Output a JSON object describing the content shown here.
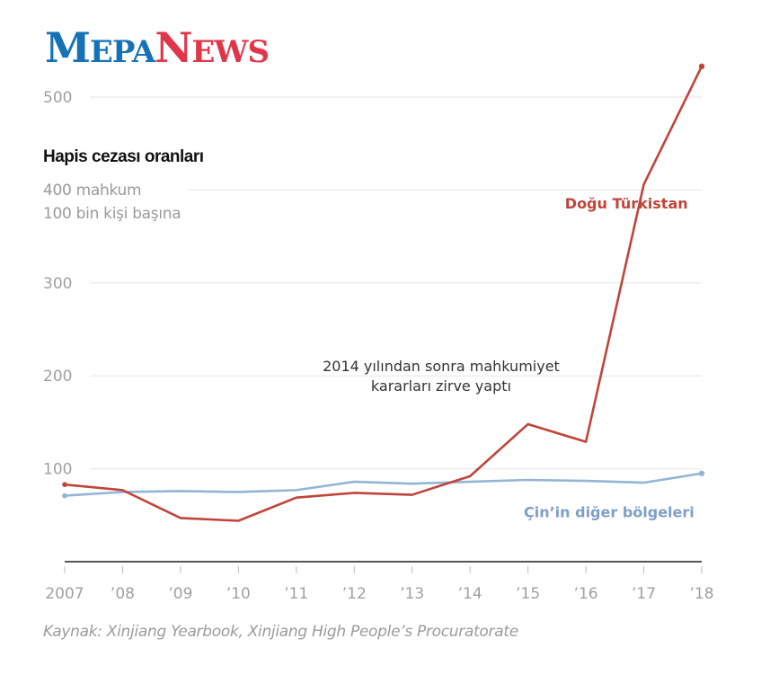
{
  "brand": {
    "part1_initial": "M",
    "part1_rest": "EPA",
    "part2_initial": "N",
    "part2_rest": "EWS",
    "colors": {
      "blue": "#1572b6",
      "red": "#e0364a"
    }
  },
  "source": "Kaynak: Xinjiang Yearbook, Xinjiang High People’s Procuratorate",
  "chart_data": {
    "type": "line",
    "title": "Hapis cezası oranları",
    "unit_line1": "400 mahkum",
    "unit_line2": "100 bin kişi başına",
    "xlabel": "",
    "ylabel": "",
    "x": [
      2007,
      2008,
      2009,
      2010,
      2011,
      2012,
      2013,
      2014,
      2015,
      2016,
      2017,
      2018
    ],
    "x_tick_labels": [
      "2007",
      "’08",
      "’09",
      "’10",
      "’11",
      "’12",
      "’13",
      "’14",
      "’15",
      "’16",
      "’17",
      "’18"
    ],
    "y_ticks": [
      100,
      200,
      300,
      400,
      500
    ],
    "y_tick_labels": [
      "100",
      "200",
      "300",
      "",
      "500"
    ],
    "ylim": [
      0,
      530
    ],
    "grid": true,
    "series": [
      {
        "name": "Doğu Türkistan",
        "color": "#c0443a",
        "values": [
          83,
          77,
          47,
          44,
          69,
          74,
          72,
          92,
          148,
          129,
          406,
          533
        ]
      },
      {
        "name": "Çin'in diğer bölgeleri",
        "color": "#93b4d6",
        "values": [
          71,
          75,
          76,
          75,
          77,
          86,
          84,
          86,
          88,
          87,
          85,
          95
        ]
      }
    ],
    "annotations": [
      {
        "line1": "2014 yılından sonra mahkumiyet",
        "line2": "kararları zirve yaptı",
        "x": 2013.5,
        "y": 205
      }
    ],
    "series_labels": [
      {
        "text": "Doğu Türkistan",
        "x": 2016.7,
        "y": 380
      },
      {
        "text": "Çin’in diğer bölgeleri",
        "x": 2016.4,
        "y": 48
      }
    ]
  }
}
